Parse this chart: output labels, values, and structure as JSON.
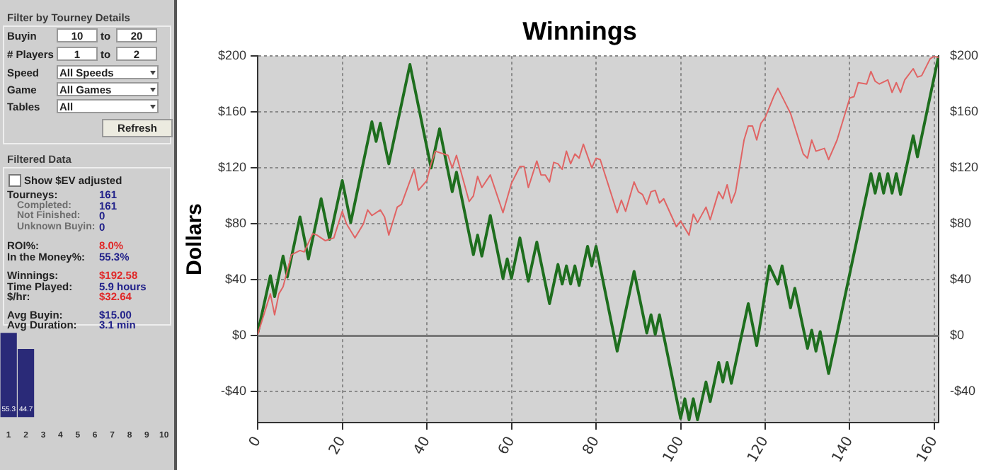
{
  "chart_data": [
    {
      "type": "other",
      "annotations": [
        "Filter by Tourney Details",
        "Buyin",
        "10",
        "to",
        "20",
        "# Players",
        "1",
        "to",
        "2",
        "Speed",
        "All Speeds",
        "Game",
        "All Games",
        "Tables",
        "All",
        "Refresh",
        "Filtered Data",
        "Show $EV adjusted",
        "Tourneys:",
        "161",
        "Completed:",
        "161",
        "Not Finished:",
        "0",
        "Unknown Buyin:",
        "0",
        "ROI%:",
        "8.0%",
        "In the Money%:",
        "55.3%",
        "Winnings:",
        "$192.58",
        "Time Played:",
        "5.9 hours",
        "$/hr:",
        "$32.64",
        "Avg Buyin:",
        "$15.00",
        "Avg Duration:",
        "3.1 min"
      ]
    },
    {
      "type": "bar",
      "categories": [
        "1",
        "2",
        "3",
        "4",
        "5",
        "6",
        "7",
        "8",
        "9",
        "10"
      ],
      "values": [
        55.3,
        44.7,
        0,
        0,
        0,
        0,
        0,
        0,
        0,
        0
      ],
      "value_labels": [
        "55.3",
        "44.7",
        null,
        null,
        null,
        null,
        null,
        null,
        null,
        null
      ],
      "color": "#2a2a78"
    },
    {
      "type": "line",
      "title": "Winnings",
      "ylabel": "Dollars",
      "xlim": [
        0,
        161
      ],
      "xticks": [
        0,
        20,
        40,
        60,
        80,
        100,
        120,
        140,
        160
      ],
      "ylim": [
        -62,
        200
      ],
      "yticks": [
        {
          "value": -40,
          "label": "-$40"
        },
        {
          "value": 0,
          "label": "$0"
        },
        {
          "value": 40,
          "label": "$40"
        },
        {
          "value": 80,
          "label": "$80"
        },
        {
          "value": 120,
          "label": "$120"
        },
        {
          "value": 160,
          "label": "$160"
        },
        {
          "value": 200,
          "label": "$200"
        }
      ],
      "y2lim": [
        -62,
        200
      ],
      "y2ticks": [
        {
          "value": -40,
          "label": "-$40"
        },
        {
          "value": 0,
          "label": "$0"
        },
        {
          "value": 40,
          "label": "$40"
        },
        {
          "value": 80,
          "label": "$80"
        },
        {
          "value": 120,
          "label": "$120"
        },
        {
          "value": 160,
          "label": "$160"
        },
        {
          "value": 200,
          "label": "$200"
        }
      ],
      "grid": true,
      "legend": false,
      "marker": "none",
      "ref_lines": [
        {
          "axis": "y",
          "value": 0,
          "color": "#777777"
        }
      ],
      "series": [
        {
          "color": "#e06464",
          "x": [
            0,
            3,
            4,
            5,
            6,
            8,
            10,
            11,
            13,
            14,
            16,
            18,
            20,
            21,
            23,
            25,
            26,
            27,
            29,
            30,
            31,
            33,
            34,
            37,
            38,
            40,
            41,
            42,
            45,
            46,
            47,
            50,
            51,
            52,
            53,
            55,
            58,
            60,
            62,
            63,
            64,
            66,
            67,
            68,
            69,
            70,
            71,
            72,
            73,
            74,
            75,
            76,
            77,
            79,
            80,
            81,
            85,
            86,
            87,
            89,
            90,
            91,
            92,
            93,
            94,
            95,
            96,
            99,
            100,
            102,
            103,
            104,
            106,
            107,
            109,
            110,
            111,
            112,
            113,
            115,
            116,
            117,
            118,
            119,
            120,
            122,
            123,
            125,
            126,
            129,
            130,
            131,
            132,
            134,
            135,
            137,
            138,
            140,
            141,
            142,
            144,
            145,
            146,
            147,
            149,
            150,
            151,
            152,
            153,
            155,
            156,
            157,
            159,
            160,
            161
          ],
          "values": [
            1,
            30,
            15,
            30,
            35,
            58,
            61,
            60,
            73,
            72,
            68,
            70,
            89,
            80,
            70,
            80,
            90,
            86,
            90,
            85,
            72,
            92,
            94,
            119,
            104,
            111,
            123,
            132,
            129,
            120,
            129,
            96,
            100,
            114,
            106,
            115,
            88,
            109,
            121,
            121,
            106,
            125,
            115,
            115,
            110,
            124,
            123,
            119,
            132,
            123,
            130,
            127,
            137,
            120,
            127,
            126,
            88,
            97,
            89,
            110,
            103,
            101,
            94,
            103,
            104,
            95,
            98,
            78,
            82,
            72,
            87,
            81,
            92,
            83,
            103,
            98,
            108,
            95,
            103,
            140,
            150,
            150,
            140,
            152,
            156,
            171,
            177,
            165,
            159,
            130,
            127,
            140,
            132,
            134,
            126,
            140,
            150,
            170,
            171,
            181,
            180,
            189,
            182,
            180,
            183,
            174,
            181,
            174,
            183,
            191,
            185,
            186,
            198,
            200,
            199
          ]
        },
        {
          "color": "#1e6e1e",
          "x": [
            0,
            3,
            4,
            6,
            7,
            10,
            12,
            15,
            17,
            20,
            22,
            27,
            28,
            29,
            31,
            36,
            41,
            43,
            46,
            47,
            51,
            52,
            53,
            55,
            58,
            59,
            60,
            62,
            64,
            66,
            69,
            71,
            72,
            73,
            74,
            75,
            76,
            78,
            79,
            80,
            85,
            89,
            92,
            93,
            94,
            95,
            100,
            101,
            102,
            103,
            104,
            106,
            107,
            109,
            110,
            111,
            112,
            116,
            118,
            121,
            123,
            124,
            126,
            127,
            130,
            131,
            132,
            133,
            135,
            145,
            146,
            147,
            148,
            149,
            150,
            151,
            152,
            155,
            156,
            161
          ],
          "values": [
            2,
            43,
            28,
            57,
            42,
            85,
            55,
            98,
            69,
            111,
            81,
            153,
            139,
            152,
            123,
            194,
            120,
            148,
            103,
            117,
            58,
            72,
            57,
            86,
            41,
            55,
            41,
            70,
            39,
            67,
            23,
            51,
            37,
            50,
            37,
            50,
            36,
            64,
            50,
            64,
            -11,
            46,
            2,
            15,
            1,
            15,
            -59,
            -45,
            -60,
            -45,
            -60,
            -33,
            -47,
            -19,
            -33,
            -19,
            -34,
            23,
            -7,
            50,
            37,
            50,
            20,
            34,
            -9,
            4,
            -11,
            3,
            -27,
            116,
            102,
            116,
            102,
            116,
            102,
            116,
            101,
            143,
            128,
            200
          ]
        }
      ]
    }
  ]
}
